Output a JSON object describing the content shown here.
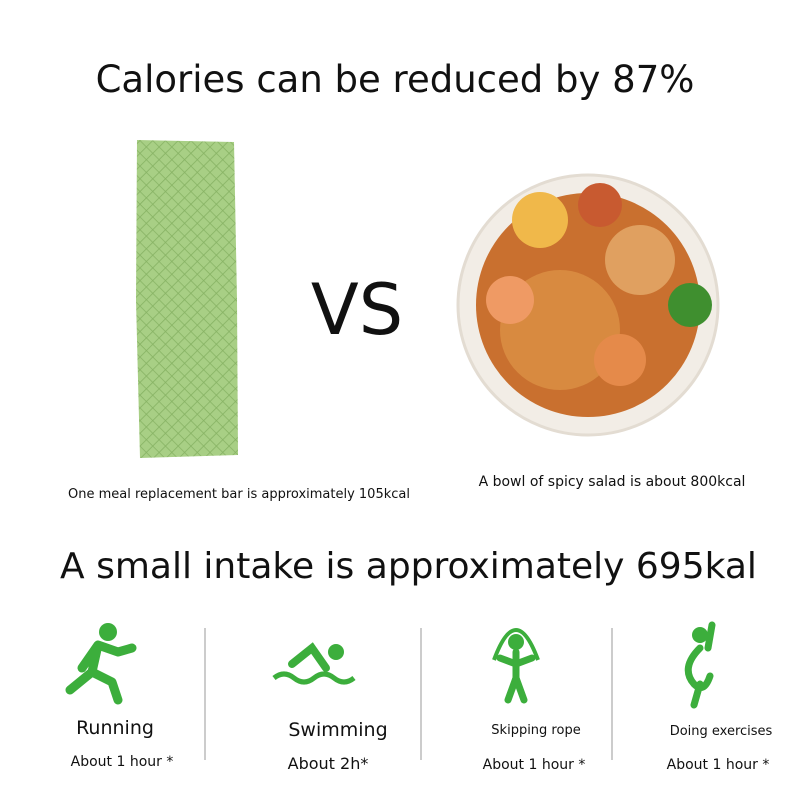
{
  "title": "Calories can be reduced by 87%",
  "vs": "VS",
  "left_caption": "One meal replacement bar is approximately 105kcal",
  "right_caption": "A bowl of spicy salad is about 800kcal",
  "subtitle": "A small intake is approximately 695kal",
  "activities": [
    {
      "name": "Running",
      "duration": "About 1 hour *"
    },
    {
      "name": "Swimming",
      "duration": "About 2h*"
    },
    {
      "name": "Skipping rope",
      "duration": "About 1 hour *"
    },
    {
      "name": "Doing exercises",
      "duration": "About 1 hour *"
    }
  ]
}
